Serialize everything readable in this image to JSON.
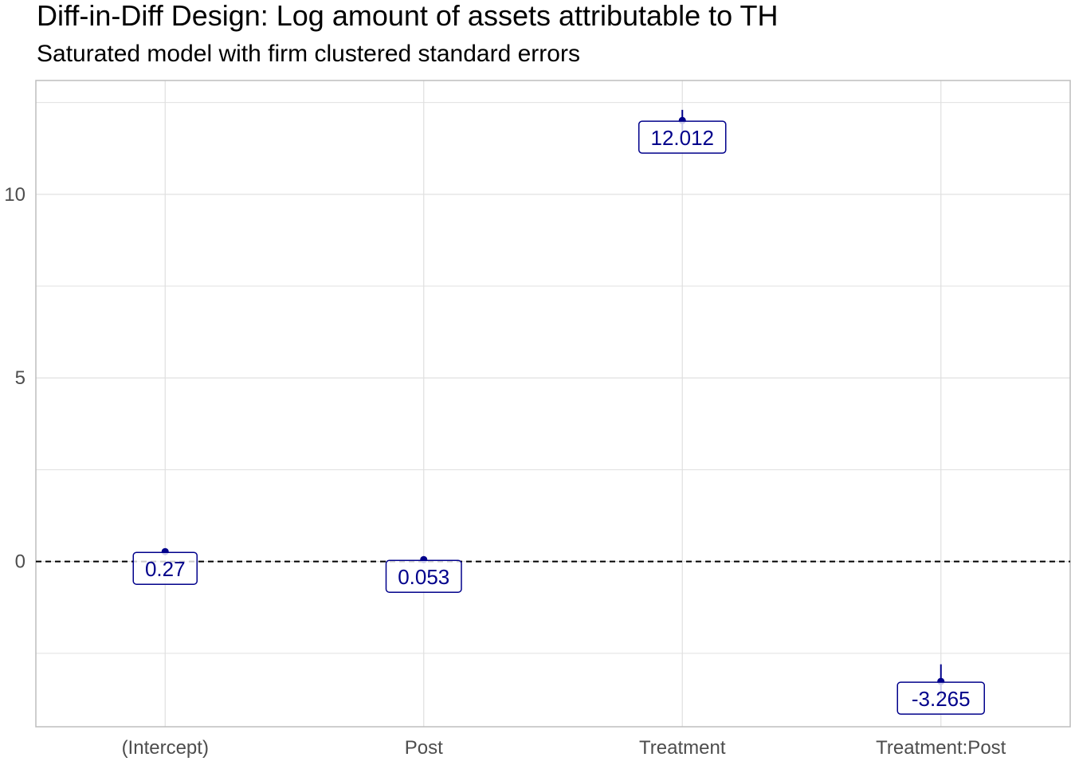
{
  "chart_data": {
    "type": "scatter",
    "title": "Diff-in-Diff Design: Log amount of assets attributable to TH",
    "subtitle": "Saturated model with firm clustered standard errors",
    "xlabel": "",
    "ylabel": "",
    "categories": [
      "(Intercept)",
      "Post",
      "Treatment",
      "Treatment:Post"
    ],
    "values": [
      0.27,
      0.053,
      12.012,
      -3.265
    ],
    "labels": [
      "0.27",
      "0.053",
      "12.012",
      "-3.265"
    ],
    "ci_low": [
      0.2,
      0.01,
      11.72,
      -3.72
    ],
    "ci_high": [
      0.34,
      0.09,
      12.3,
      -2.8
    ],
    "ylim": [
      -4.5,
      13.1
    ],
    "yticks": [
      0,
      5,
      10
    ],
    "reference_line": 0,
    "grid": true,
    "colors": {
      "point": "#00008b",
      "label": "#00008b",
      "reference": "#000000",
      "grid": "#e0e0e0"
    }
  }
}
